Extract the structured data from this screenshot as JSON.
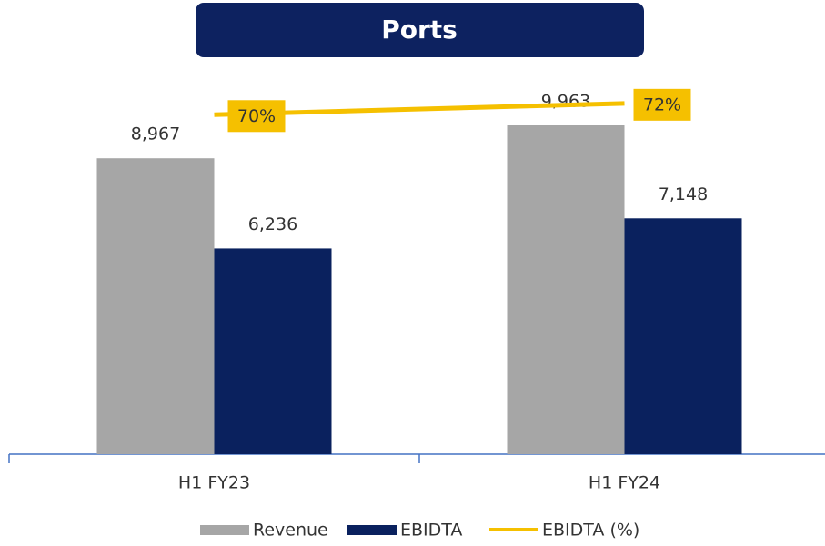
{
  "chart_data": {
    "type": "bar",
    "title": "Ports",
    "categories": [
      "H1 FY23",
      "H1 FY24"
    ],
    "series": [
      {
        "name": "Revenue",
        "color": "#a6a6a6",
        "values": [
          8967,
          9963
        ],
        "value_labels": [
          "8,967",
          "9,963"
        ]
      },
      {
        "name": "EBIDTA",
        "color": "#0a215e",
        "values": [
          6236,
          7148
        ],
        "value_labels": [
          "6,236",
          "7,148"
        ]
      },
      {
        "name": "EBIDTA (%)",
        "type": "line",
        "axis": "y2",
        "color": "#f5c000",
        "values": [
          70,
          72
        ],
        "value_labels": [
          "70%",
          "72%"
        ]
      }
    ],
    "ylim": [
      0,
      12000
    ],
    "y2lim": [
      10,
      80
    ]
  }
}
